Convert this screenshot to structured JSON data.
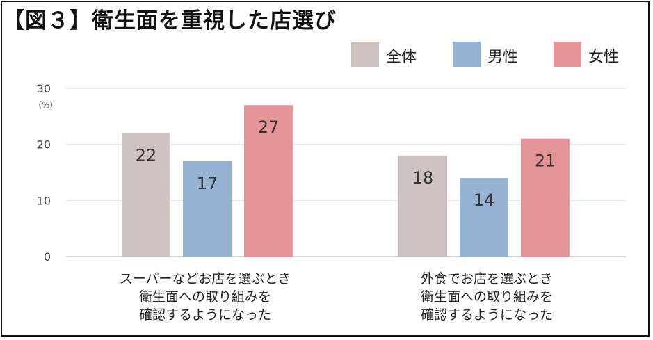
{
  "title": "【図３】衛生面を重視した店選び",
  "chart_data": {
    "type": "bar",
    "title": "【図３】衛生面を重視した店選び",
    "ylabel": "（%）",
    "ylim": [
      0,
      30
    ],
    "yticks": [
      0,
      10,
      20,
      30
    ],
    "grid": true,
    "legend_position": "top-right",
    "categories": [
      "スーパーなどお店を選ぶとき\n衛生面への取り組みを\n確認するようになった",
      "外食でお店を選ぶとき\n衛生面への取り組みを\n確認するようになった"
    ],
    "series": [
      {
        "name": "全体",
        "color": "#ccc3c1",
        "values": [
          22,
          18
        ]
      },
      {
        "name": "男性",
        "color": "#97b3d4",
        "values": [
          17,
          14
        ]
      },
      {
        "name": "女性",
        "color": "#e59597",
        "values": [
          27,
          21
        ]
      }
    ]
  }
}
